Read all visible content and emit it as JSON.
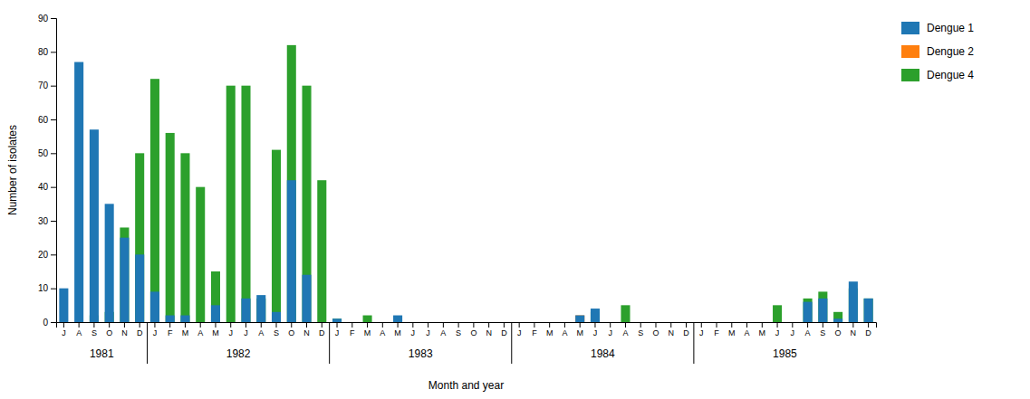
{
  "chart_data": {
    "type": "bar",
    "categories": [
      "J",
      "A",
      "S",
      "O",
      "N",
      "D",
      "J",
      "F",
      "M",
      "A",
      "M",
      "J",
      "J",
      "A",
      "S",
      "O",
      "N",
      "D",
      "J",
      "F",
      "M",
      "A",
      "M",
      "J",
      "J",
      "A",
      "S",
      "O",
      "N",
      "D",
      "J",
      "F",
      "M",
      "A",
      "M",
      "J",
      "J",
      "A",
      "S",
      "O",
      "N",
      "D",
      "J",
      "F",
      "M",
      "A",
      "M",
      "J",
      "J",
      "A",
      "S",
      "O",
      "N",
      "D"
    ],
    "series": [
      {
        "name": "Dengue 1",
        "values": [
          10,
          77,
          57,
          35,
          25,
          20,
          9,
          2,
          2,
          0,
          5,
          0,
          7,
          8,
          3,
          42,
          14,
          0,
          1,
          0,
          0,
          0,
          2,
          0,
          0,
          0,
          0,
          0,
          0,
          0,
          0,
          0,
          0,
          0,
          2,
          4,
          0,
          0,
          0,
          0,
          0,
          0,
          0,
          0,
          0,
          0,
          0,
          0,
          0,
          6,
          7,
          1,
          12,
          7
        ]
      },
      {
        "name": "Dengue 2",
        "values": [
          0,
          0,
          0,
          0,
          0,
          0,
          0,
          0,
          0,
          0,
          0,
          0,
          0,
          0,
          0,
          0,
          0,
          0,
          0,
          0,
          0,
          0,
          0,
          0,
          0,
          0,
          0,
          0,
          0,
          0,
          0,
          0,
          0,
          0,
          2,
          0,
          0,
          0,
          0,
          0,
          0,
          0,
          0,
          0,
          0,
          0,
          0,
          0,
          0,
          0,
          0,
          0,
          0,
          0
        ]
      },
      {
        "name": "Dengue 4",
        "values": [
          0,
          0,
          2,
          3,
          28,
          50,
          72,
          56,
          50,
          40,
          15,
          70,
          70,
          7,
          51,
          82,
          70,
          42,
          1,
          0,
          2,
          0,
          0,
          0,
          0,
          0,
          0,
          0,
          0,
          0,
          0,
          0,
          0,
          0,
          0,
          3,
          0,
          5,
          0,
          0,
          0,
          0,
          0,
          0,
          0,
          0,
          0,
          5,
          0,
          7,
          9,
          3,
          10,
          7
        ]
      }
    ],
    "ylabel": "Number of isolates",
    "xlabel": "Month and year",
    "ylim": [
      0,
      90
    ],
    "yticks": [
      0,
      10,
      20,
      30,
      40,
      50,
      60,
      70,
      80,
      90
    ],
    "stacked": false,
    "grid": false,
    "legend": "right",
    "annotations": [
      {
        "text": "1981",
        "x": 2.5
      },
      {
        "text": "1982",
        "x": 11.5
      },
      {
        "text": "1983",
        "x": 23.5
      },
      {
        "text": "1984",
        "x": 35.5
      },
      {
        "text": "1985",
        "x": 47.5
      }
    ],
    "x_dividers": [
      5.5,
      17.5,
      29.5,
      41.5
    ]
  }
}
